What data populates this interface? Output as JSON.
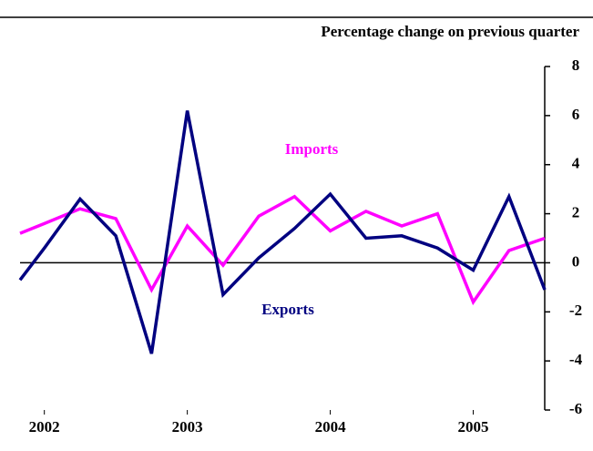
{
  "chart_data": {
    "type": "line",
    "subtitle": "Percentage change on previous quarter",
    "x": [
      2001.83,
      2002.0,
      2002.25,
      2002.5,
      2002.75,
      2003.0,
      2003.25,
      2003.5,
      2003.75,
      2004.0,
      2004.25,
      2004.5,
      2004.75,
      2005.0,
      2005.25,
      2005.5
    ],
    "series": [
      {
        "name": "Imports",
        "color": "#ff00ff",
        "values": [
          1.2,
          1.6,
          2.2,
          1.8,
          -1.1,
          1.5,
          -0.1,
          1.9,
          2.7,
          1.3,
          2.1,
          1.5,
          2.0,
          -1.6,
          0.5,
          1.0
        ]
      },
      {
        "name": "Exports",
        "color": "#000080",
        "values": [
          -0.7,
          0.6,
          2.6,
          1.1,
          -3.7,
          6.2,
          -1.3,
          0.2,
          1.4,
          2.8,
          1.0,
          1.1,
          0.6,
          -0.3,
          2.7,
          -1.1
        ]
      }
    ],
    "xlim": [
      2001.83,
      2005.5
    ],
    "xticks": [
      2002,
      2003,
      2004,
      2005
    ],
    "ylim": [
      -6,
      8
    ],
    "yticks": [
      -6,
      -4,
      -2,
      0,
      2,
      4,
      6,
      8
    ]
  }
}
